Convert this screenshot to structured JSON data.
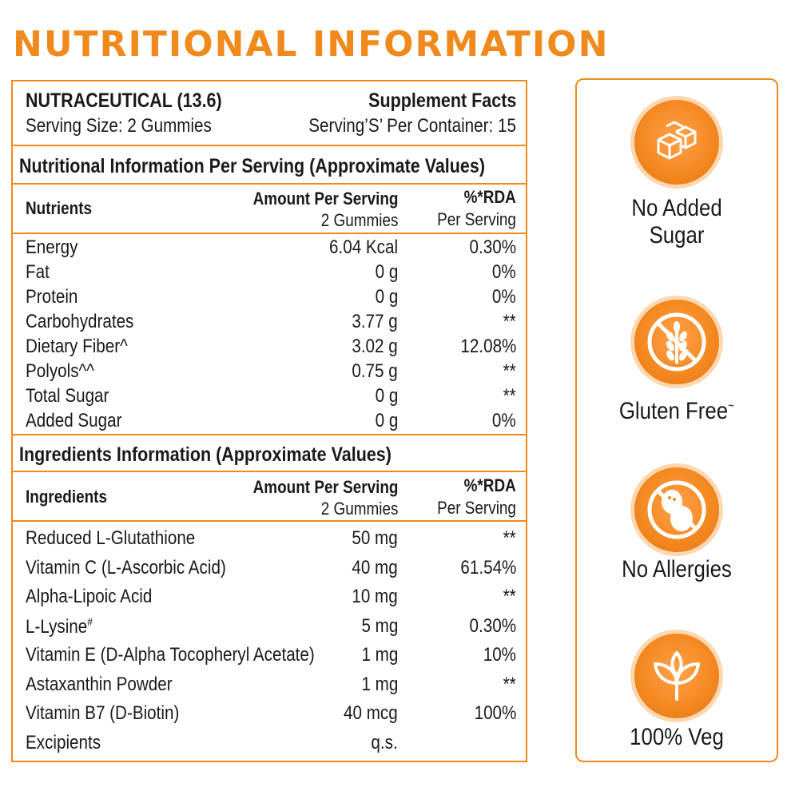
{
  "title": "NUTRITIONAL INFORMATION",
  "header": {
    "product": "NUTRACEUTICAL (13.6)",
    "facts_title": "Supplement Facts",
    "serving_size": "Serving Size: 2 Gummies",
    "servings_per_container": "Serving’S’ Per Container: 15"
  },
  "nutrition": {
    "section_title": "Nutritional Information Per Serving (Approximate Values)",
    "col_name": "Nutrients",
    "col_amount": "Amount Per Serving",
    "col_amount_sub": "2 Gummies",
    "col_rda": "%*RDA",
    "col_rda_sub": "Per Serving",
    "rows": [
      {
        "name": "Energy",
        "amount": "6.04 Kcal",
        "rda": "0.30%"
      },
      {
        "name": "Fat",
        "amount": "0 g",
        "rda": "0%"
      },
      {
        "name": "Protein",
        "amount": "0 g",
        "rda": "0%"
      },
      {
        "name": "Carbohydrates",
        "amount": "3.77 g",
        "rda": "**"
      },
      {
        "name": "Dietary Fiber^",
        "amount": "3.02 g",
        "rda": "12.08%"
      },
      {
        "name": "Polyols^^",
        "amount": "0.75 g",
        "rda": "**"
      },
      {
        "name": "Total Sugar",
        "amount": "0 g",
        "rda": "**"
      },
      {
        "name": "Added Sugar",
        "amount": "0 g",
        "rda": "0%"
      }
    ]
  },
  "ingredients": {
    "section_title": "Ingredients Information (Approximate Values)",
    "col_name": "Ingredients",
    "col_amount": "Amount Per Serving",
    "col_amount_sub": "2 Gummies",
    "col_rda": "%*RDA",
    "col_rda_sub": "Per Serving",
    "rows": [
      {
        "name": "Reduced  L-Glutathione",
        "amount": "50 mg",
        "rda": "**"
      },
      {
        "name": "Vitamin C (L-Ascorbic Acid)",
        "amount": "40 mg",
        "rda": "61.54%"
      },
      {
        "name": "Alpha-Lipoic Acid",
        "amount": "10 mg",
        "rda": "**"
      },
      {
        "name": "L-Lysine",
        "sup": "#",
        "amount": "5 mg",
        "rda": "0.30%"
      },
      {
        "name": "Vitamin E (D-Alpha Tocopheryl Acetate)",
        "amount": "1 mg",
        "rda": "10%"
      },
      {
        "name": "Astaxanthin Powder",
        "amount": "1 mg",
        "rda": "**"
      },
      {
        "name": "Vitamin B7 (D-Biotin)",
        "amount": "40 mcg",
        "rda": "100%"
      },
      {
        "name": "Excipients",
        "amount": "q.s.",
        "rda": ""
      }
    ]
  },
  "badges": [
    {
      "label": "No Added Sugar",
      "line1": "No Added",
      "line2": "Sugar",
      "icon": "sugar-cubes-icon"
    },
    {
      "label": "Gluten Free",
      "line1": "Gluten Free",
      "line1_sup": "~",
      "icon": "wheat-crossed-icon"
    },
    {
      "label": "No Allergies",
      "line1": "No Allergies",
      "icon": "peanut-crossed-icon"
    },
    {
      "label": "100% Veg",
      "line1": "100% Veg",
      "icon": "sprout-icon"
    }
  ],
  "colors": {
    "accent": "#f08a1c",
    "icon_ring": "#fcd7b0"
  }
}
